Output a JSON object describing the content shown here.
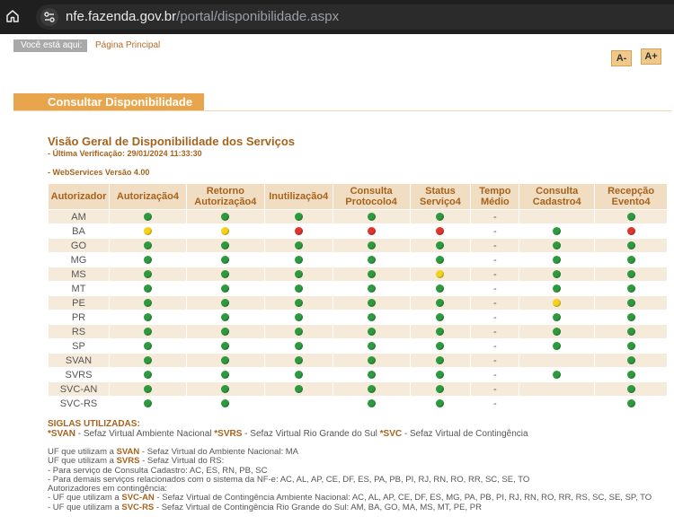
{
  "browser": {
    "url_host": "nfe.fazenda.gov.br",
    "url_path": "/portal/disponibilidade.aspx"
  },
  "breadcrumb": {
    "label": "Você está aqui:",
    "link": "Página Principal"
  },
  "font_controls": {
    "decrease": "A-",
    "increase": "A+"
  },
  "section": {
    "heading": "Consultar Disponibilidade"
  },
  "overview": {
    "title": "Visão Geral de Disponibilidade dos Serviços",
    "last_check": "- Última Verificação: 29/01/2024 11:33:30",
    "version": "- WebServices Versão 4.00"
  },
  "table": {
    "headers": [
      "Autorizador",
      "Autorização4",
      "Retorno\nAutorização4",
      "Inutilização4",
      "Consulta\nProtocolo4",
      "Status\nServiço4",
      "Tempo\nMédio",
      "Consulta\nCadastro4",
      "Recepção\nEvento4"
    ],
    "rows": [
      [
        "AM",
        "green",
        "green",
        "green",
        "green",
        "green",
        "-",
        "",
        "green"
      ],
      [
        "BA",
        "yellow",
        "yellow",
        "red",
        "red",
        "red",
        "-",
        "green",
        "red"
      ],
      [
        "GO",
        "green",
        "green",
        "green",
        "green",
        "green",
        "-",
        "green",
        "green"
      ],
      [
        "MG",
        "green",
        "green",
        "green",
        "green",
        "green",
        "-",
        "green",
        "green"
      ],
      [
        "MS",
        "green",
        "green",
        "green",
        "green",
        "yellow",
        "-",
        "green",
        "green"
      ],
      [
        "MT",
        "green",
        "green",
        "green",
        "green",
        "green",
        "-",
        "green",
        "green"
      ],
      [
        "PE",
        "green",
        "green",
        "green",
        "green",
        "green",
        "-",
        "yellow",
        "green"
      ],
      [
        "PR",
        "green",
        "green",
        "green",
        "green",
        "green",
        "-",
        "green",
        "green"
      ],
      [
        "RS",
        "green",
        "green",
        "green",
        "green",
        "green",
        "-",
        "green",
        "green"
      ],
      [
        "SP",
        "green",
        "green",
        "green",
        "green",
        "green",
        "-",
        "green",
        "green"
      ],
      [
        "SVAN",
        "green",
        "green",
        "green",
        "green",
        "green",
        "-",
        "",
        "green"
      ],
      [
        "SVRS",
        "green",
        "green",
        "green",
        "green",
        "green",
        "-",
        "green",
        "green"
      ],
      [
        "SVC-AN",
        "green",
        "green",
        "green",
        "green",
        "green",
        "-",
        "",
        "green"
      ],
      [
        "SVC-RS",
        "green",
        "green",
        "",
        "green",
        "green",
        "-",
        "",
        "green"
      ]
    ]
  },
  "colors": {
    "green": "#2e9a3e",
    "yellow": "#f2d21a",
    "red": "#e0352b",
    "accent": "#a5631e",
    "header_bg": "#f1ddc2"
  },
  "siglas": {
    "title": "SIGLAS UTILIZADAS:",
    "items": [
      {
        "code": "*SVAN",
        "desc": " - Sefaz Virtual Ambiente Nacional "
      },
      {
        "code": "*SVRS",
        "desc": " - Sefaz Virtual Rio Grande do Sul "
      },
      {
        "code": "*SVC",
        "desc": " - Sefaz Virtual de Contingência"
      }
    ]
  },
  "notes": {
    "l1_pre": "UF que utilizam a ",
    "l1_code": "SVAN",
    "l1_post": " - Sefaz Virtual do Ambiente Nacional: MA",
    "l2_pre": "UF que utilizam a ",
    "l2_code": "SVRS",
    "l2_post": " - Sefaz Virtual do RS:",
    "l3": "- Para serviço de Consulta Cadastro: AC, ES, RN, PB, SC",
    "l4": "- Para demais serviços relacionados com o sistema da NF-e: AC, AL, AP, CE, DF, ES, PA, PB, PI, RJ, RN, RO, RR, SC, SE, TO",
    "l5": "Autorizadores em contingência:",
    "l6_pre": "- UF que utilizam a ",
    "l6_code": "SVC-AN",
    "l6_post": " - Sefaz Virtual de Contingência Ambiente Nacional: AC, AL, AP, CE, DF, ES, MG, PA, PB, PI, RJ, RN, RO, RR, RS, SC, SE, SP, TO",
    "l7_pre": "- UF que utilizam a ",
    "l7_code": "SVC-RS",
    "l7_post": " - Sefaz Virtual de Contingência Rio Grande do Sul: AM, BA, GO, MA, MS, MT, PE, PR"
  }
}
